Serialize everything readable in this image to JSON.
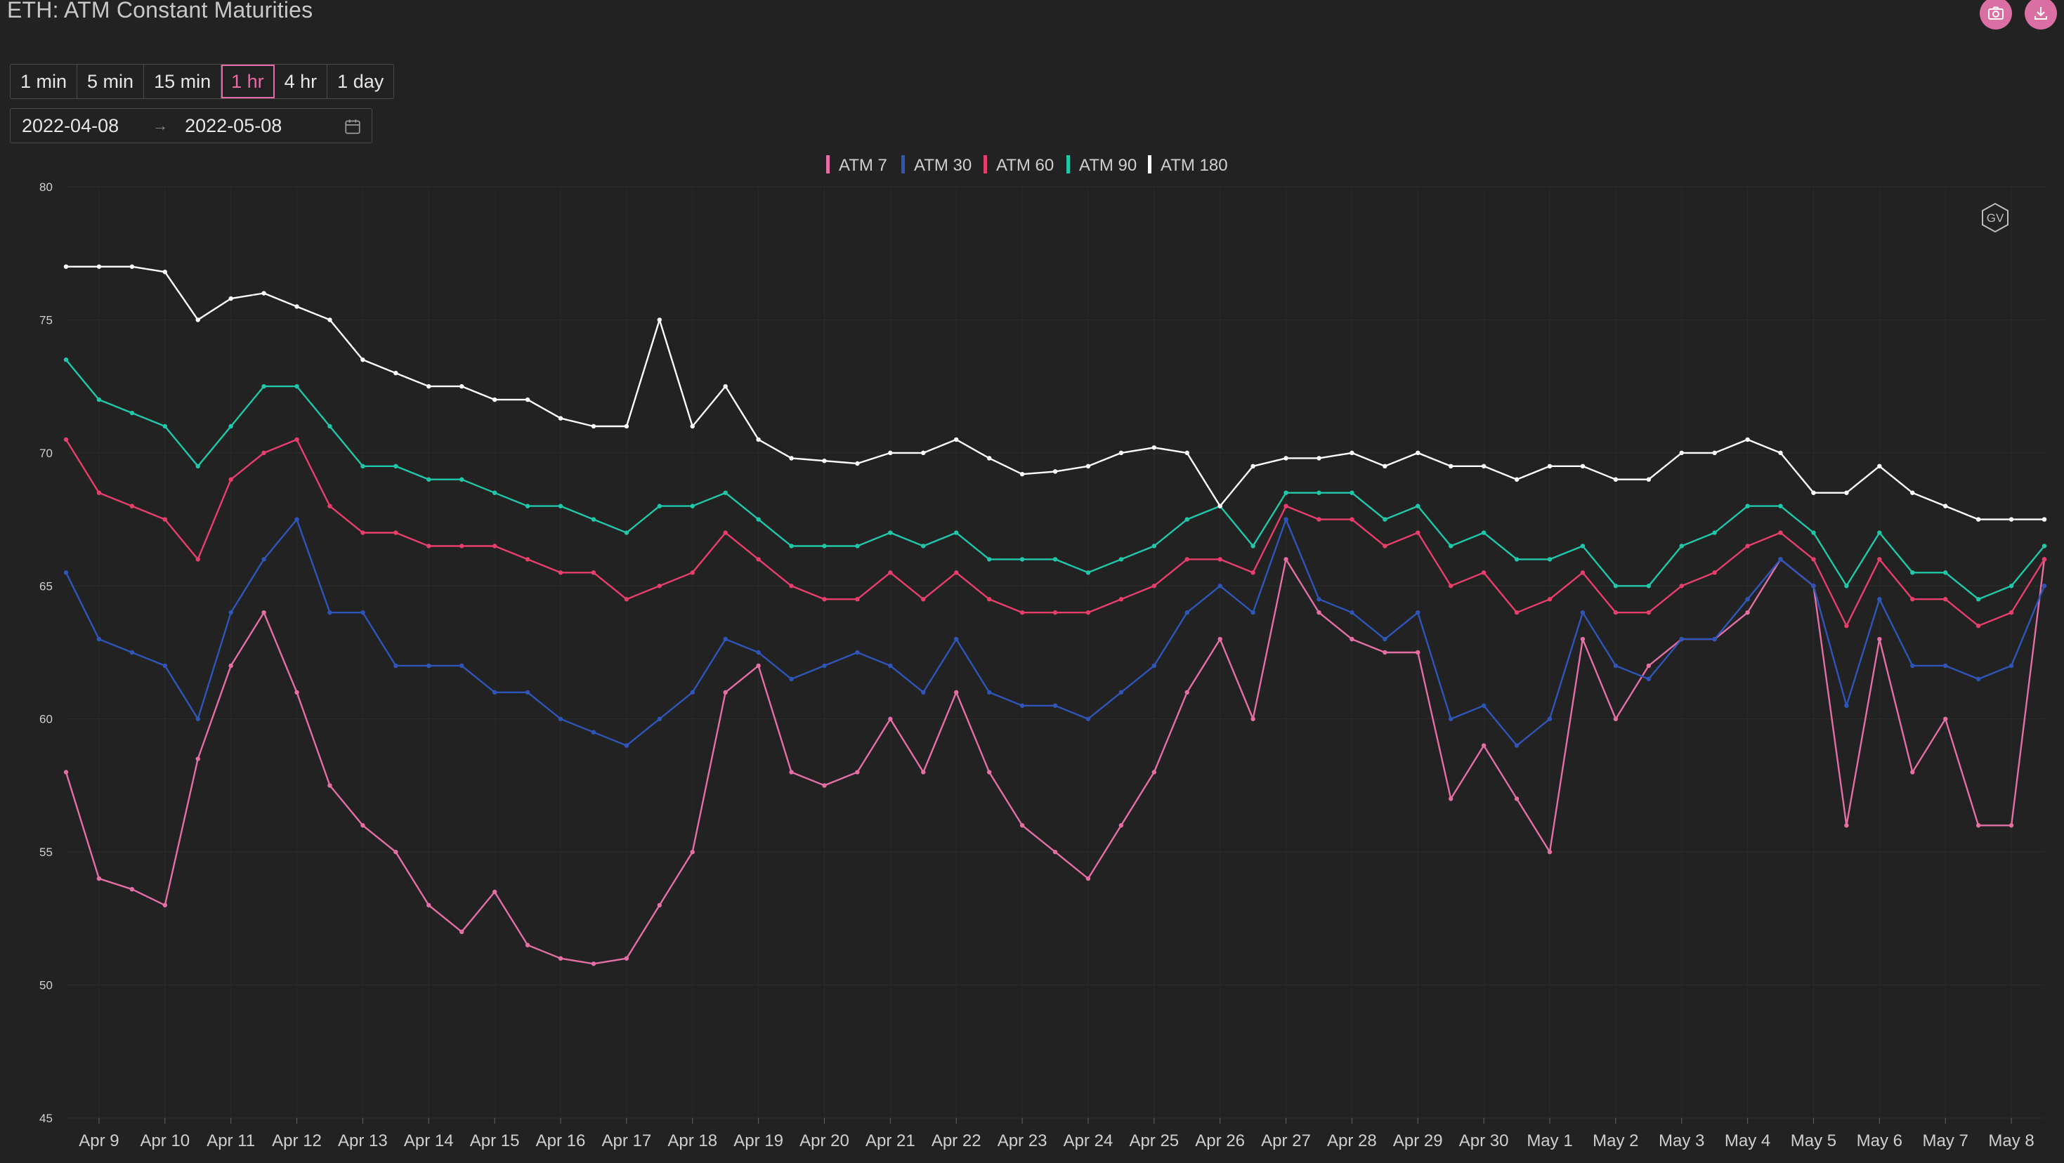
{
  "header": {
    "title": "ETH: ATM Constant Maturities",
    "actions": [
      {
        "name": "screenshot",
        "icon": "camera-icon"
      },
      {
        "name": "download",
        "icon": "download-icon"
      }
    ]
  },
  "intervals": {
    "options": [
      "1 min",
      "5 min",
      "15 min",
      "1 hr",
      "4 hr",
      "1 day"
    ],
    "selected": "1 hr"
  },
  "daterange": {
    "start": "2022-04-08",
    "separator": "→",
    "end": "2022-05-08",
    "icon": "calendar-icon"
  },
  "watermark": {
    "text": "GV",
    "icon": "hexagon-logo-icon"
  },
  "colors": {
    "background": "#222222",
    "atm7": "#e46fa5",
    "atm30": "#2f55b8",
    "atm60": "#e83e6d",
    "atm90": "#1fc8a8",
    "atm180": "#ffffff",
    "accent": "#d96fa3"
  },
  "chart_data": {
    "type": "line",
    "title": "ETH: ATM Constant Maturities",
    "xlabel": "",
    "ylabel": "",
    "ylim": [
      45,
      80
    ],
    "yticks": [
      45,
      50,
      55,
      60,
      65,
      70,
      75,
      80
    ],
    "xlim": [
      "2022-04-08 12:00",
      "2022-05-08 12:00"
    ],
    "xticks": [
      "Apr 9",
      "Apr 10",
      "Apr 11",
      "Apr 12",
      "Apr 13",
      "Apr 14",
      "Apr 15",
      "Apr 16",
      "Apr 17",
      "Apr 18",
      "Apr 19",
      "Apr 20",
      "Apr 21",
      "Apr 22",
      "Apr 23",
      "Apr 24",
      "Apr 25",
      "Apr 26",
      "Apr 27",
      "Apr 28",
      "Apr 29",
      "Apr 30",
      "May 1",
      "May 2",
      "May 3",
      "May 4",
      "May 5",
      "May 6",
      "May 7",
      "May 8"
    ],
    "grid": true,
    "legend_position": "top-center",
    "x": [
      "2022-04-08 12:00",
      "2022-04-09 00:00",
      "2022-04-09 12:00",
      "2022-04-10 00:00",
      "2022-04-10 12:00",
      "2022-04-11 00:00",
      "2022-04-11 12:00",
      "2022-04-12 00:00",
      "2022-04-12 12:00",
      "2022-04-13 00:00",
      "2022-04-13 12:00",
      "2022-04-14 00:00",
      "2022-04-14 12:00",
      "2022-04-15 00:00",
      "2022-04-15 12:00",
      "2022-04-16 00:00",
      "2022-04-16 12:00",
      "2022-04-17 00:00",
      "2022-04-17 12:00",
      "2022-04-18 00:00",
      "2022-04-18 12:00",
      "2022-04-19 00:00",
      "2022-04-19 12:00",
      "2022-04-20 00:00",
      "2022-04-20 12:00",
      "2022-04-21 00:00",
      "2022-04-21 12:00",
      "2022-04-22 00:00",
      "2022-04-22 12:00",
      "2022-04-23 00:00",
      "2022-04-23 12:00",
      "2022-04-24 00:00",
      "2022-04-24 12:00",
      "2022-04-25 00:00",
      "2022-04-25 12:00",
      "2022-04-26 00:00",
      "2022-04-26 12:00",
      "2022-04-27 00:00",
      "2022-04-27 12:00",
      "2022-04-28 00:00",
      "2022-04-28 12:00",
      "2022-04-29 00:00",
      "2022-04-29 12:00",
      "2022-04-30 00:00",
      "2022-04-30 12:00",
      "2022-05-01 00:00",
      "2022-05-01 12:00",
      "2022-05-02 00:00",
      "2022-05-02 12:00",
      "2022-05-03 00:00",
      "2022-05-03 12:00",
      "2022-05-04 00:00",
      "2022-05-04 12:00",
      "2022-05-05 00:00",
      "2022-05-05 12:00",
      "2022-05-06 00:00",
      "2022-05-06 12:00",
      "2022-05-07 00:00",
      "2022-05-07 12:00",
      "2022-05-08 00:00",
      "2022-05-08 12:00"
    ],
    "series": [
      {
        "name": "ATM 7",
        "color": "#e46fa5",
        "values": [
          58,
          54,
          53.6,
          53,
          58.5,
          62,
          64,
          61,
          57.5,
          56,
          55,
          53,
          52,
          53.5,
          51.5,
          51,
          50.8,
          51,
          53,
          55,
          61,
          62,
          58,
          57.5,
          58,
          60,
          58,
          61,
          58,
          56,
          55,
          54,
          56,
          58,
          61,
          63,
          60,
          66,
          64,
          63,
          62.5,
          62.5,
          57,
          59,
          57,
          55,
          63,
          60,
          62,
          63,
          63,
          64,
          66,
          65,
          56,
          63,
          58,
          60,
          56,
          56,
          66
        ]
      },
      {
        "name": "ATM 30",
        "color": "#2f55b8",
        "values": [
          65.5,
          63,
          62.5,
          62,
          60,
          64,
          66,
          67.5,
          64,
          64,
          62,
          62,
          62,
          61,
          61,
          60,
          59.5,
          59,
          60,
          61,
          63,
          62.5,
          61.5,
          62,
          62.5,
          62,
          61,
          63,
          61,
          60.5,
          60.5,
          60,
          61,
          62,
          64,
          65,
          64,
          67.5,
          64.5,
          64,
          63,
          64,
          60,
          60.5,
          59,
          60,
          64,
          62,
          61.5,
          63,
          63,
          64.5,
          66,
          65,
          60.5,
          64.5,
          62,
          62,
          61.5,
          62,
          65
        ]
      },
      {
        "name": "ATM 60",
        "color": "#e83e6d",
        "values": [
          70.5,
          68.5,
          68,
          67.5,
          66,
          69,
          70,
          70.5,
          68,
          67,
          67,
          66.5,
          66.5,
          66.5,
          66,
          65.5,
          65.5,
          64.5,
          65,
          65.5,
          67,
          66,
          65,
          64.5,
          64.5,
          65.5,
          64.5,
          65.5,
          64.5,
          64,
          64,
          64,
          64.5,
          65,
          66,
          66,
          65.5,
          68,
          67.5,
          67.5,
          66.5,
          67,
          65,
          65.5,
          64,
          64.5,
          65.5,
          64,
          64,
          65,
          65.5,
          66.5,
          67,
          66,
          63.5,
          66,
          64.5,
          64.5,
          63.5,
          64,
          66
        ]
      },
      {
        "name": "ATM 90",
        "color": "#1fc8a8",
        "values": [
          73.5,
          72,
          71.5,
          71,
          69.5,
          71,
          72.5,
          72.5,
          71,
          69.5,
          69.5,
          69,
          69,
          68.5,
          68,
          68,
          67.5,
          67,
          68,
          68,
          68.5,
          67.5,
          66.5,
          66.5,
          66.5,
          67,
          66.5,
          67,
          66,
          66,
          66,
          65.5,
          66,
          66.5,
          67.5,
          68,
          66.5,
          68.5,
          68.5,
          68.5,
          67.5,
          68,
          66.5,
          67,
          66,
          66,
          66.5,
          65,
          65,
          66.5,
          67,
          68,
          68,
          67,
          65,
          67,
          65.5,
          65.5,
          64.5,
          65,
          66.5
        ]
      },
      {
        "name": "ATM 180",
        "color": "#ffffff",
        "values": [
          77,
          77,
          77,
          76.8,
          75,
          75.8,
          76,
          75.5,
          75,
          73.5,
          73,
          72.5,
          72.5,
          72,
          72,
          71.3,
          71,
          71,
          75,
          71,
          72.5,
          70.5,
          69.8,
          69.7,
          69.6,
          70,
          70,
          70.5,
          69.8,
          69.2,
          69.3,
          69.5,
          70,
          70.2,
          70,
          68,
          69.5,
          69.8,
          69.8,
          70,
          69.5,
          70,
          69.5,
          69.5,
          69,
          69.5,
          69.5,
          69,
          69,
          70,
          70,
          70.5,
          70,
          68.5,
          68.5,
          69.5,
          68.5,
          68,
          67.5,
          67.5,
          67.5
        ]
      }
    ]
  }
}
